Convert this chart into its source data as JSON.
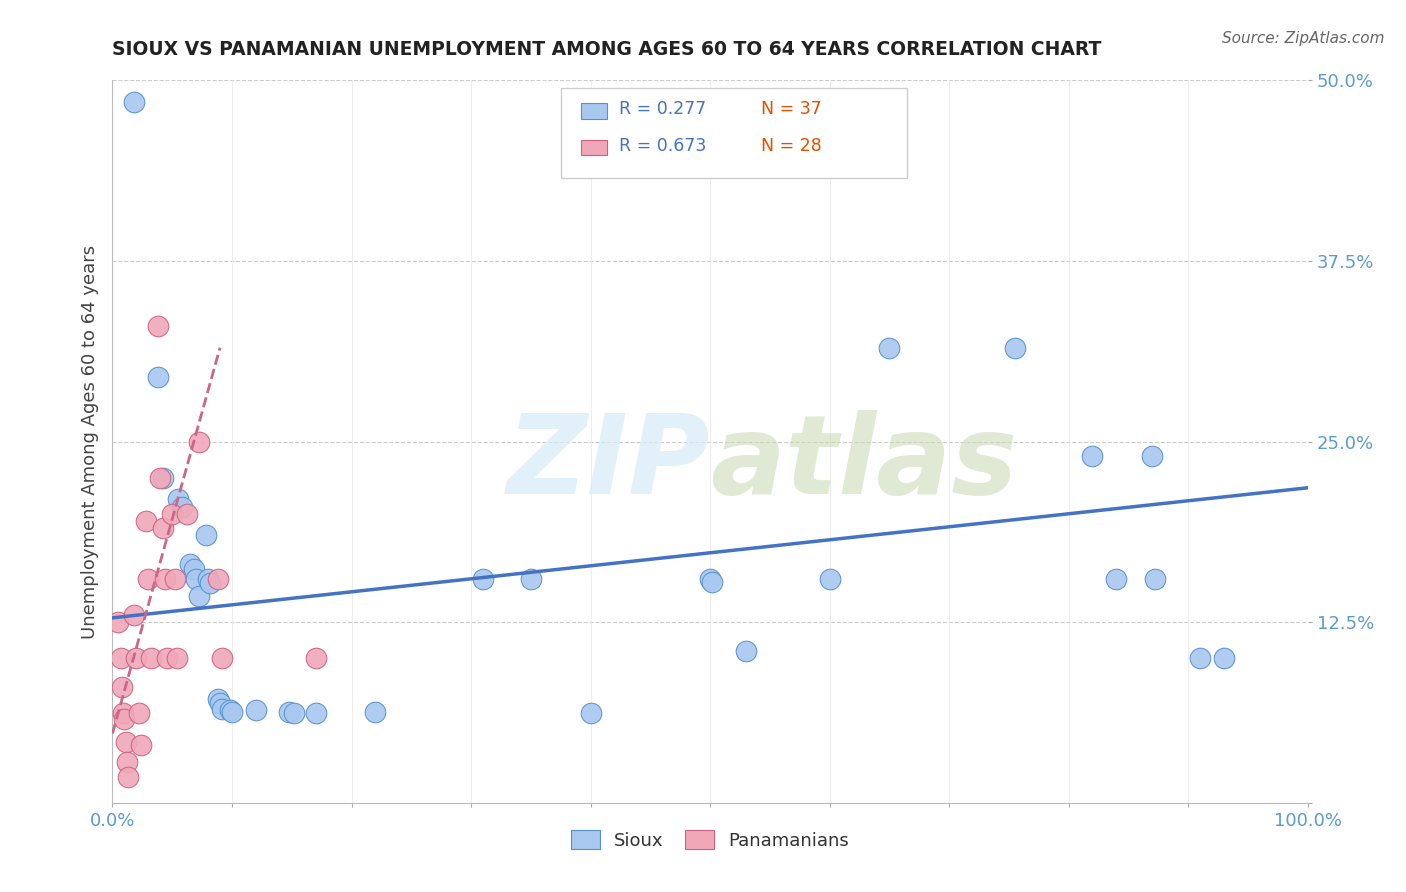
{
  "title": "SIOUX VS PANAMANIAN UNEMPLOYMENT AMONG AGES 60 TO 64 YEARS CORRELATION CHART",
  "source_text": "Source: ZipAtlas.com",
  "ylabel": "Unemployment Among Ages 60 to 64 years",
  "xlim": [
    0,
    1.0
  ],
  "ylim": [
    0,
    0.5
  ],
  "xticks": [
    0.0,
    0.1,
    0.2,
    0.3,
    0.4,
    0.5,
    0.6,
    0.7,
    0.8,
    0.9,
    1.0
  ],
  "xticklabels": [
    "0.0%",
    "",
    "",
    "",
    "",
    "",
    "",
    "",
    "",
    "",
    "100.0%"
  ],
  "yticks": [
    0.0,
    0.125,
    0.25,
    0.375,
    0.5
  ],
  "yticklabels": [
    "",
    "12.5%",
    "25.0%",
    "37.5%",
    "50.0%"
  ],
  "background_color": "#ffffff",
  "grid_color": "#cccccc",
  "watermark_color": "#d6eaf8",
  "legend_r1": "R = 0.277",
  "legend_n1": "N = 37",
  "legend_r2": "R = 0.673",
  "legend_n2": "N = 28",
  "sioux_color": "#a8c8f0",
  "panamanian_color": "#f0a8b8",
  "sioux_edge_color": "#5590d0",
  "panamanian_edge_color": "#d06080",
  "sioux_line_color": "#4472c4",
  "panamanian_line_color": "#cc6688",
  "legend_text_color": "#4472c4",
  "legend_n_color": "#e05000",
  "title_color": "#222222",
  "source_color": "#666666",
  "ylabel_color": "#444444",
  "tick_label_color": "#5b9bd5",
  "sioux_scatter": [
    [
      0.018,
      0.485
    ],
    [
      0.038,
      0.295
    ],
    [
      0.042,
      0.225
    ],
    [
      0.055,
      0.21
    ],
    [
      0.058,
      0.205
    ],
    [
      0.065,
      0.165
    ],
    [
      0.068,
      0.162
    ],
    [
      0.07,
      0.155
    ],
    [
      0.072,
      0.143
    ],
    [
      0.078,
      0.185
    ],
    [
      0.08,
      0.155
    ],
    [
      0.082,
      0.152
    ],
    [
      0.088,
      0.072
    ],
    [
      0.09,
      0.069
    ],
    [
      0.092,
      0.065
    ],
    [
      0.098,
      0.064
    ],
    [
      0.1,
      0.063
    ],
    [
      0.12,
      0.064
    ],
    [
      0.148,
      0.063
    ],
    [
      0.152,
      0.062
    ],
    [
      0.17,
      0.062
    ],
    [
      0.22,
      0.063
    ],
    [
      0.31,
      0.155
    ],
    [
      0.35,
      0.155
    ],
    [
      0.4,
      0.062
    ],
    [
      0.5,
      0.155
    ],
    [
      0.502,
      0.153
    ],
    [
      0.53,
      0.105
    ],
    [
      0.6,
      0.155
    ],
    [
      0.65,
      0.315
    ],
    [
      0.755,
      0.315
    ],
    [
      0.82,
      0.24
    ],
    [
      0.84,
      0.155
    ],
    [
      0.87,
      0.24
    ],
    [
      0.872,
      0.155
    ],
    [
      0.91,
      0.1
    ],
    [
      0.93,
      0.1
    ]
  ],
  "panamanian_scatter": [
    [
      0.005,
      0.125
    ],
    [
      0.007,
      0.1
    ],
    [
      0.008,
      0.08
    ],
    [
      0.009,
      0.062
    ],
    [
      0.01,
      0.058
    ],
    [
      0.011,
      0.042
    ],
    [
      0.012,
      0.028
    ],
    [
      0.013,
      0.018
    ],
    [
      0.018,
      0.13
    ],
    [
      0.02,
      0.1
    ],
    [
      0.022,
      0.062
    ],
    [
      0.024,
      0.04
    ],
    [
      0.028,
      0.195
    ],
    [
      0.03,
      0.155
    ],
    [
      0.032,
      0.1
    ],
    [
      0.038,
      0.33
    ],
    [
      0.04,
      0.225
    ],
    [
      0.042,
      0.19
    ],
    [
      0.044,
      0.155
    ],
    [
      0.046,
      0.1
    ],
    [
      0.05,
      0.2
    ],
    [
      0.052,
      0.155
    ],
    [
      0.054,
      0.1
    ],
    [
      0.062,
      0.2
    ],
    [
      0.072,
      0.25
    ],
    [
      0.088,
      0.155
    ],
    [
      0.092,
      0.1
    ],
    [
      0.17,
      0.1
    ]
  ],
  "sioux_trend_x": [
    0.0,
    1.0
  ],
  "sioux_trend_y": [
    0.128,
    0.218
  ],
  "panamanian_trend_x": [
    0.0,
    0.09
  ],
  "panamanian_trend_y": [
    0.048,
    0.315
  ]
}
